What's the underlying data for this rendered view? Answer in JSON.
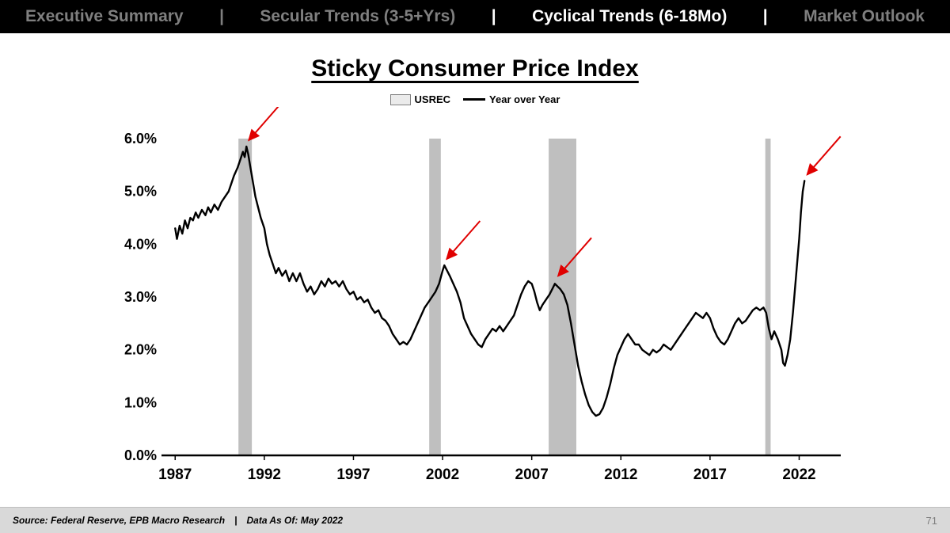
{
  "nav": {
    "separator": "|",
    "items": [
      {
        "label": "Executive Summary",
        "active": false
      },
      {
        "label": "Secular Trends (3-5+Yrs)",
        "active": false
      },
      {
        "label": "Cyclical Trends (6-18Mo)",
        "active": true
      },
      {
        "label": "Market Outlook",
        "active": false
      }
    ]
  },
  "chart": {
    "title": "Sticky Consumer Price Index",
    "legend": [
      {
        "label": "USREC",
        "swatch": "box"
      },
      {
        "label": "Year over Year",
        "swatch": "line"
      }
    ]
  },
  "chart_data": {
    "type": "line",
    "title": "Sticky Consumer Price Index",
    "xlabel": "",
    "ylabel": "",
    "grid": false,
    "legend_position": "top",
    "xlim": [
      1986.5,
      2023.0
    ],
    "ylim": [
      0,
      6
    ],
    "x_ticks": [
      1987,
      1992,
      1997,
      2002,
      2007,
      2012,
      2017,
      2022
    ],
    "y_ticks": [
      "0.0%",
      "1.0%",
      "2.0%",
      "3.0%",
      "4.0%",
      "5.0%",
      "6.0%"
    ],
    "recession_bands": {
      "name": "USREC",
      "color": "#bfbfbf",
      "ranges": [
        [
          1990.55,
          1991.3
        ],
        [
          2001.25,
          2001.9
        ],
        [
          2007.95,
          2009.5
        ],
        [
          2020.1,
          2020.4
        ]
      ]
    },
    "arrow_color": "#e00000",
    "annotations": [
      {
        "type": "arrow",
        "x": 1991.0,
        "y": 5.85
      },
      {
        "type": "arrow",
        "x": 2002.1,
        "y": 3.6
      },
      {
        "type": "arrow",
        "x": 2008.35,
        "y": 3.28
      },
      {
        "type": "arrow",
        "x": 2022.32,
        "y": 5.2
      }
    ],
    "series": [
      {
        "name": "Year over Year",
        "color": "#000000",
        "points": [
          [
            1987.0,
            4.3
          ],
          [
            1987.1,
            4.1
          ],
          [
            1987.25,
            4.35
          ],
          [
            1987.4,
            4.2
          ],
          [
            1987.55,
            4.45
          ],
          [
            1987.7,
            4.3
          ],
          [
            1987.85,
            4.5
          ],
          [
            1988.0,
            4.45
          ],
          [
            1988.15,
            4.6
          ],
          [
            1988.3,
            4.5
          ],
          [
            1988.5,
            4.65
          ],
          [
            1988.7,
            4.55
          ],
          [
            1988.85,
            4.7
          ],
          [
            1989.0,
            4.6
          ],
          [
            1989.2,
            4.75
          ],
          [
            1989.4,
            4.65
          ],
          [
            1989.6,
            4.8
          ],
          [
            1989.8,
            4.9
          ],
          [
            1990.0,
            5.0
          ],
          [
            1990.15,
            5.15
          ],
          [
            1990.3,
            5.3
          ],
          [
            1990.5,
            5.45
          ],
          [
            1990.65,
            5.6
          ],
          [
            1990.8,
            5.75
          ],
          [
            1990.9,
            5.65
          ],
          [
            1991.0,
            5.85
          ],
          [
            1991.1,
            5.7
          ],
          [
            1991.2,
            5.5
          ],
          [
            1991.35,
            5.2
          ],
          [
            1991.5,
            4.9
          ],
          [
            1991.65,
            4.7
          ],
          [
            1991.8,
            4.5
          ],
          [
            1992.0,
            4.3
          ],
          [
            1992.15,
            4.0
          ],
          [
            1992.3,
            3.8
          ],
          [
            1992.5,
            3.6
          ],
          [
            1992.65,
            3.45
          ],
          [
            1992.8,
            3.55
          ],
          [
            1993.0,
            3.4
          ],
          [
            1993.2,
            3.5
          ],
          [
            1993.4,
            3.3
          ],
          [
            1993.6,
            3.45
          ],
          [
            1993.8,
            3.3
          ],
          [
            1994.0,
            3.45
          ],
          [
            1994.2,
            3.25
          ],
          [
            1994.4,
            3.1
          ],
          [
            1994.6,
            3.2
          ],
          [
            1994.8,
            3.05
          ],
          [
            1995.0,
            3.15
          ],
          [
            1995.2,
            3.3
          ],
          [
            1995.4,
            3.2
          ],
          [
            1995.6,
            3.35
          ],
          [
            1995.8,
            3.25
          ],
          [
            1996.0,
            3.3
          ],
          [
            1996.2,
            3.2
          ],
          [
            1996.4,
            3.3
          ],
          [
            1996.6,
            3.15
          ],
          [
            1996.8,
            3.05
          ],
          [
            1997.0,
            3.1
          ],
          [
            1997.2,
            2.95
          ],
          [
            1997.4,
            3.0
          ],
          [
            1997.6,
            2.9
          ],
          [
            1997.8,
            2.95
          ],
          [
            1998.0,
            2.8
          ],
          [
            1998.2,
            2.7
          ],
          [
            1998.4,
            2.75
          ],
          [
            1998.6,
            2.6
          ],
          [
            1998.8,
            2.55
          ],
          [
            1999.0,
            2.45
          ],
          [
            1999.2,
            2.3
          ],
          [
            1999.4,
            2.2
          ],
          [
            1999.6,
            2.1
          ],
          [
            1999.8,
            2.15
          ],
          [
            2000.0,
            2.1
          ],
          [
            2000.2,
            2.2
          ],
          [
            2000.4,
            2.35
          ],
          [
            2000.6,
            2.5
          ],
          [
            2000.8,
            2.65
          ],
          [
            2001.0,
            2.8
          ],
          [
            2001.2,
            2.9
          ],
          [
            2001.4,
            3.0
          ],
          [
            2001.6,
            3.1
          ],
          [
            2001.8,
            3.25
          ],
          [
            2002.0,
            3.5
          ],
          [
            2002.1,
            3.6
          ],
          [
            2002.25,
            3.5
          ],
          [
            2002.4,
            3.4
          ],
          [
            2002.6,
            3.25
          ],
          [
            2002.8,
            3.1
          ],
          [
            2003.0,
            2.9
          ],
          [
            2003.2,
            2.6
          ],
          [
            2003.4,
            2.45
          ],
          [
            2003.6,
            2.3
          ],
          [
            2003.8,
            2.2
          ],
          [
            2004.0,
            2.1
          ],
          [
            2004.2,
            2.05
          ],
          [
            2004.4,
            2.2
          ],
          [
            2004.6,
            2.3
          ],
          [
            2004.8,
            2.4
          ],
          [
            2005.0,
            2.35
          ],
          [
            2005.2,
            2.45
          ],
          [
            2005.4,
            2.35
          ],
          [
            2005.6,
            2.45
          ],
          [
            2005.8,
            2.55
          ],
          [
            2006.0,
            2.65
          ],
          [
            2006.2,
            2.85
          ],
          [
            2006.4,
            3.05
          ],
          [
            2006.6,
            3.2
          ],
          [
            2006.8,
            3.3
          ],
          [
            2007.0,
            3.25
          ],
          [
            2007.15,
            3.1
          ],
          [
            2007.3,
            2.9
          ],
          [
            2007.45,
            2.75
          ],
          [
            2007.6,
            2.85
          ],
          [
            2007.8,
            2.95
          ],
          [
            2008.0,
            3.05
          ],
          [
            2008.15,
            3.15
          ],
          [
            2008.3,
            3.25
          ],
          [
            2008.45,
            3.2
          ],
          [
            2008.6,
            3.15
          ],
          [
            2008.8,
            3.05
          ],
          [
            2009.0,
            2.85
          ],
          [
            2009.2,
            2.5
          ],
          [
            2009.4,
            2.1
          ],
          [
            2009.6,
            1.7
          ],
          [
            2009.8,
            1.4
          ],
          [
            2010.0,
            1.15
          ],
          [
            2010.2,
            0.95
          ],
          [
            2010.4,
            0.82
          ],
          [
            2010.6,
            0.75
          ],
          [
            2010.8,
            0.78
          ],
          [
            2011.0,
            0.9
          ],
          [
            2011.2,
            1.1
          ],
          [
            2011.4,
            1.35
          ],
          [
            2011.6,
            1.65
          ],
          [
            2011.8,
            1.9
          ],
          [
            2012.0,
            2.05
          ],
          [
            2012.2,
            2.2
          ],
          [
            2012.4,
            2.3
          ],
          [
            2012.6,
            2.2
          ],
          [
            2012.8,
            2.1
          ],
          [
            2013.0,
            2.1
          ],
          [
            2013.2,
            2.0
          ],
          [
            2013.4,
            1.95
          ],
          [
            2013.6,
            1.9
          ],
          [
            2013.8,
            2.0
          ],
          [
            2014.0,
            1.95
          ],
          [
            2014.2,
            2.0
          ],
          [
            2014.4,
            2.1
          ],
          [
            2014.6,
            2.05
          ],
          [
            2014.8,
            2.0
          ],
          [
            2015.0,
            2.1
          ],
          [
            2015.2,
            2.2
          ],
          [
            2015.4,
            2.3
          ],
          [
            2015.6,
            2.4
          ],
          [
            2015.8,
            2.5
          ],
          [
            2016.0,
            2.6
          ],
          [
            2016.2,
            2.7
          ],
          [
            2016.4,
            2.65
          ],
          [
            2016.6,
            2.6
          ],
          [
            2016.8,
            2.7
          ],
          [
            2017.0,
            2.6
          ],
          [
            2017.2,
            2.4
          ],
          [
            2017.4,
            2.25
          ],
          [
            2017.6,
            2.15
          ],
          [
            2017.8,
            2.1
          ],
          [
            2018.0,
            2.2
          ],
          [
            2018.2,
            2.35
          ],
          [
            2018.4,
            2.5
          ],
          [
            2018.6,
            2.6
          ],
          [
            2018.8,
            2.5
          ],
          [
            2019.0,
            2.55
          ],
          [
            2019.2,
            2.65
          ],
          [
            2019.4,
            2.75
          ],
          [
            2019.6,
            2.8
          ],
          [
            2019.8,
            2.75
          ],
          [
            2020.0,
            2.8
          ],
          [
            2020.15,
            2.7
          ],
          [
            2020.3,
            2.4
          ],
          [
            2020.45,
            2.2
          ],
          [
            2020.6,
            2.35
          ],
          [
            2020.8,
            2.2
          ],
          [
            2021.0,
            2.0
          ],
          [
            2021.1,
            1.75
          ],
          [
            2021.2,
            1.7
          ],
          [
            2021.35,
            1.9
          ],
          [
            2021.5,
            2.2
          ],
          [
            2021.65,
            2.7
          ],
          [
            2021.8,
            3.3
          ],
          [
            2022.0,
            4.1
          ],
          [
            2022.1,
            4.6
          ],
          [
            2022.2,
            5.0
          ],
          [
            2022.3,
            5.2
          ]
        ]
      }
    ]
  },
  "footer": {
    "source": "Source: Federal Reserve, EPB Macro Research",
    "separator": "|",
    "data_as_of": "Data As Of: May 2022",
    "page_number": "71"
  }
}
